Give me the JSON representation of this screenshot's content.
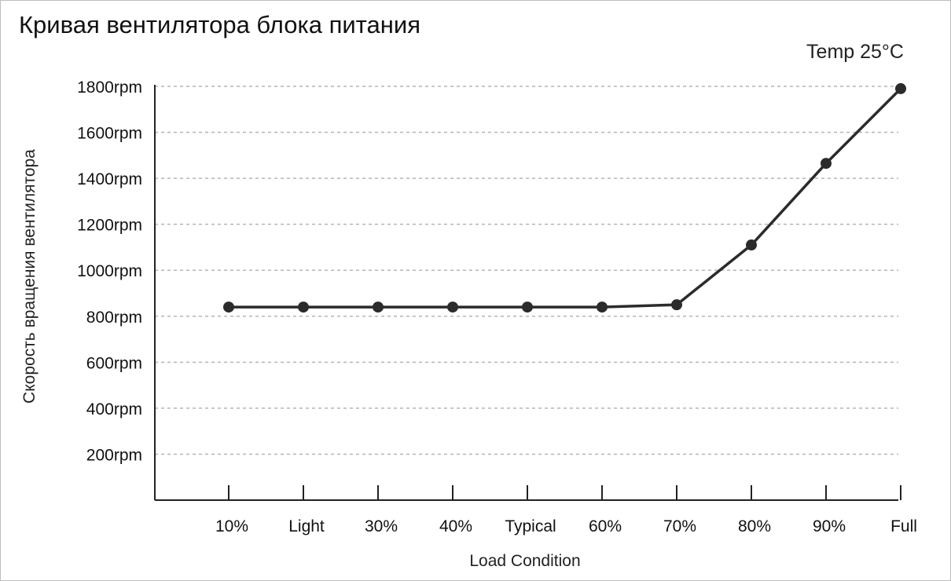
{
  "chart_data": {
    "type": "line",
    "title": "Кривая вентилятора блока питания",
    "annotation": "Temp 25°C",
    "xlabel": "Load Condition",
    "ylabel": "Скорость вращения вентилятора",
    "categories": [
      "10%",
      "Light",
      "30%",
      "40%",
      "Typical",
      "60%",
      "70%",
      "80%",
      "90%",
      "Full"
    ],
    "series": [
      {
        "values": [
          840,
          840,
          840,
          840,
          840,
          840,
          850,
          1110,
          1465,
          1790
        ],
        "color": "#2b2b2b"
      }
    ],
    "y_ticks": [
      200,
      400,
      600,
      800,
      1000,
      1200,
      1400,
      1600,
      1800
    ],
    "y_tick_labels": [
      "200rpm",
      "400rpm",
      "600rpm",
      "800rpm",
      "1000rpm",
      "1200rpm",
      "1400rpm",
      "1600rpm",
      "1800rpm"
    ],
    "ylim": [
      0,
      1800
    ],
    "grid": "horizontal dashed",
    "colors": {
      "line": "#2b2b2b",
      "axis": "#222222",
      "grid": "#b5b5b5"
    }
  }
}
